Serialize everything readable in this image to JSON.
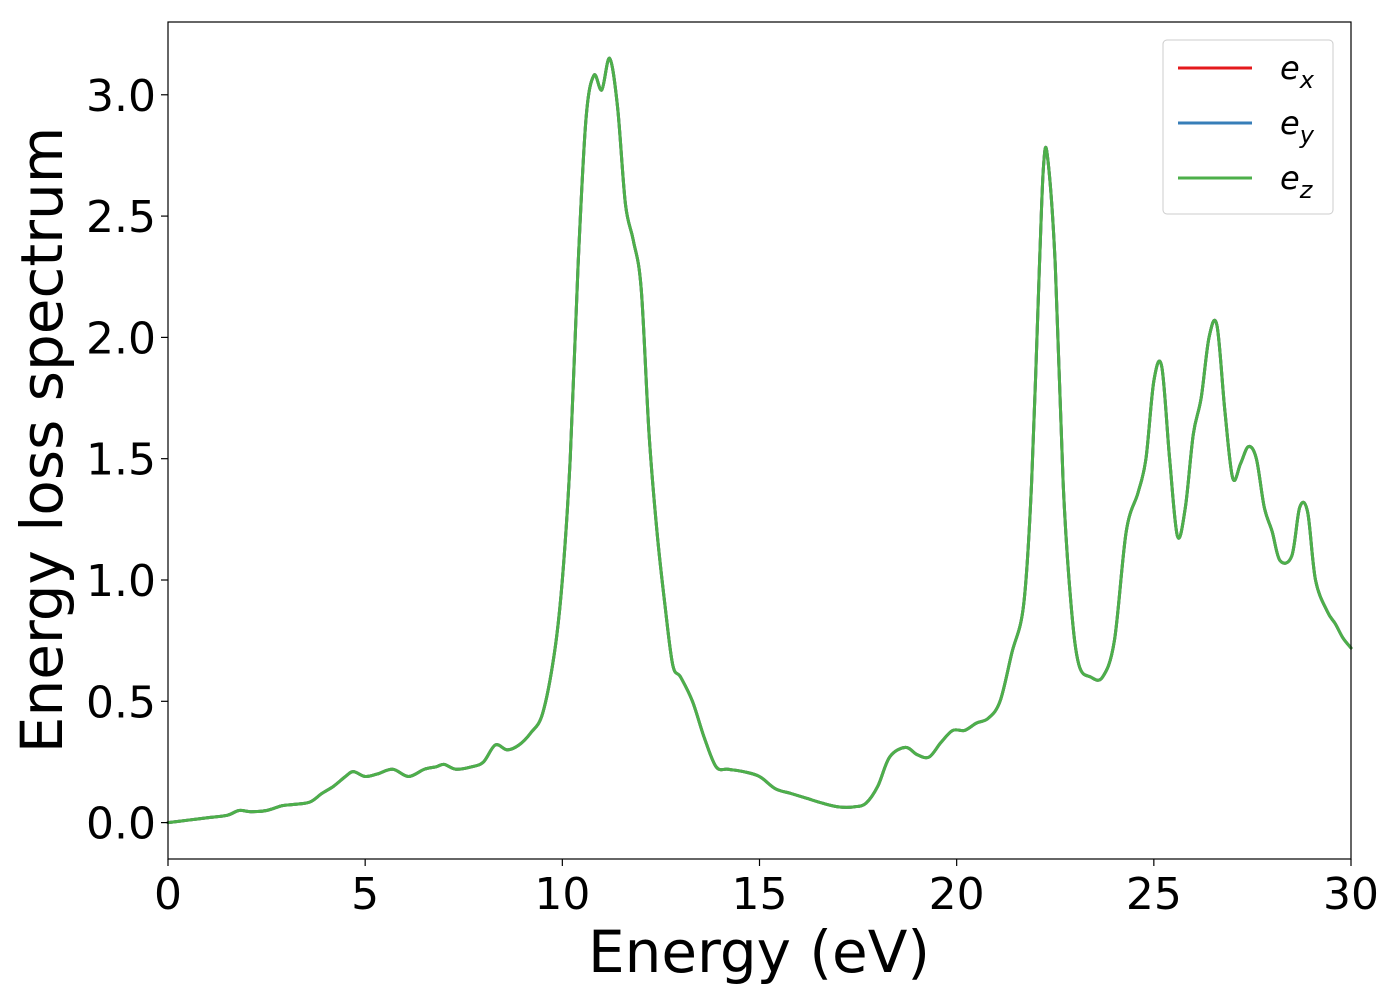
{
  "chart_data": {
    "type": "line",
    "title": "",
    "xlabel": "Energy (eV)",
    "ylabel": "Energy loss spectrum",
    "xlim": [
      0,
      30
    ],
    "ylim": [
      -0.15,
      3.3
    ],
    "xticks": [
      0,
      5,
      10,
      15,
      20,
      25,
      30
    ],
    "xtick_labels": [
      "0",
      "5",
      "10",
      "15",
      "20",
      "25",
      "30"
    ],
    "yticks": [
      0.0,
      0.5,
      1.0,
      1.5,
      2.0,
      2.5,
      3.0
    ],
    "ytick_labels": [
      "0.0",
      "0.5",
      "1.0",
      "1.5",
      "2.0",
      "2.5",
      "3.0"
    ],
    "grid": false,
    "legend_position": "top-right",
    "legend": [
      {
        "base": "e",
        "sub": "x"
      },
      {
        "base": "e",
        "sub": "y"
      },
      {
        "base": "e",
        "sub": "z"
      }
    ],
    "x": [
      0,
      0.5,
      1.0,
      1.5,
      1.8,
      2.1,
      2.5,
      2.9,
      3.2,
      3.6,
      3.9,
      4.2,
      4.5,
      4.7,
      5.0,
      5.3,
      5.7,
      6.1,
      6.5,
      6.8,
      7.0,
      7.3,
      7.7,
      8.0,
      8.3,
      8.6,
      8.9,
      9.2,
      9.5,
      9.8,
      10.0,
      10.2,
      10.4,
      10.6,
      10.8,
      11.0,
      11.2,
      11.4,
      11.6,
      11.8,
      12.0,
      12.2,
      12.4,
      12.6,
      12.8,
      13.0,
      13.3,
      13.6,
      13.9,
      14.2,
      14.6,
      15.0,
      15.4,
      15.8,
      16.2,
      16.6,
      17.0,
      17.4,
      17.7,
      18.0,
      18.3,
      18.7,
      19.0,
      19.3,
      19.6,
      19.9,
      20.2,
      20.5,
      20.8,
      21.1,
      21.4,
      21.7,
      21.9,
      22.1,
      22.2,
      22.3,
      22.5,
      22.7,
      22.9,
      23.1,
      23.4,
      23.7,
      24.0,
      24.3,
      24.6,
      24.8,
      25.0,
      25.2,
      25.4,
      25.6,
      25.8,
      26.0,
      26.2,
      26.4,
      26.6,
      26.8,
      27.0,
      27.2,
      27.4,
      27.6,
      27.8,
      28.0,
      28.2,
      28.5,
      28.7,
      28.9,
      29.1,
      29.4,
      29.6,
      29.8,
      30.0
    ],
    "series": [
      {
        "name": "e_x",
        "color": "#e41a1c",
        "values": [
          0.0,
          0.01,
          0.02,
          0.03,
          0.05,
          0.045,
          0.05,
          0.07,
          0.075,
          0.085,
          0.12,
          0.15,
          0.19,
          0.21,
          0.19,
          0.2,
          0.22,
          0.19,
          0.22,
          0.23,
          0.24,
          0.22,
          0.23,
          0.25,
          0.32,
          0.3,
          0.32,
          0.37,
          0.45,
          0.7,
          1.0,
          1.5,
          2.3,
          2.9,
          3.08,
          3.02,
          3.15,
          2.95,
          2.55,
          2.4,
          2.2,
          1.6,
          1.2,
          0.9,
          0.65,
          0.6,
          0.5,
          0.35,
          0.23,
          0.22,
          0.21,
          0.19,
          0.14,
          0.12,
          0.1,
          0.08,
          0.065,
          0.065,
          0.08,
          0.15,
          0.27,
          0.31,
          0.28,
          0.27,
          0.33,
          0.38,
          0.38,
          0.41,
          0.43,
          0.5,
          0.7,
          0.9,
          1.4,
          2.3,
          2.7,
          2.75,
          2.3,
          1.4,
          0.9,
          0.65,
          0.6,
          0.6,
          0.75,
          1.2,
          1.36,
          1.5,
          1.82,
          1.88,
          1.5,
          1.18,
          1.3,
          1.6,
          1.75,
          2.0,
          2.05,
          1.7,
          1.42,
          1.48,
          1.55,
          1.5,
          1.3,
          1.2,
          1.08,
          1.1,
          1.3,
          1.28,
          1.0,
          0.87,
          0.82,
          0.76,
          0.72
        ]
      },
      {
        "name": "e_y",
        "color": "#377eb8",
        "values": [
          0.0,
          0.01,
          0.02,
          0.03,
          0.05,
          0.045,
          0.05,
          0.07,
          0.075,
          0.085,
          0.12,
          0.15,
          0.19,
          0.21,
          0.19,
          0.2,
          0.22,
          0.19,
          0.22,
          0.23,
          0.24,
          0.22,
          0.23,
          0.25,
          0.32,
          0.3,
          0.32,
          0.37,
          0.45,
          0.7,
          1.0,
          1.5,
          2.3,
          2.9,
          3.08,
          3.02,
          3.15,
          2.95,
          2.55,
          2.4,
          2.2,
          1.6,
          1.2,
          0.9,
          0.65,
          0.6,
          0.5,
          0.35,
          0.23,
          0.22,
          0.21,
          0.19,
          0.14,
          0.12,
          0.1,
          0.08,
          0.065,
          0.065,
          0.08,
          0.15,
          0.27,
          0.31,
          0.28,
          0.27,
          0.33,
          0.38,
          0.38,
          0.41,
          0.43,
          0.5,
          0.7,
          0.9,
          1.4,
          2.3,
          2.7,
          2.75,
          2.3,
          1.4,
          0.9,
          0.65,
          0.6,
          0.6,
          0.75,
          1.2,
          1.36,
          1.5,
          1.82,
          1.88,
          1.5,
          1.18,
          1.3,
          1.6,
          1.75,
          2.0,
          2.05,
          1.7,
          1.42,
          1.48,
          1.55,
          1.5,
          1.3,
          1.2,
          1.08,
          1.1,
          1.3,
          1.28,
          1.0,
          0.87,
          0.82,
          0.76,
          0.72
        ]
      },
      {
        "name": "e_z",
        "color": "#4daf4a",
        "values": [
          0.0,
          0.01,
          0.02,
          0.03,
          0.05,
          0.045,
          0.05,
          0.07,
          0.075,
          0.085,
          0.12,
          0.15,
          0.19,
          0.21,
          0.19,
          0.2,
          0.22,
          0.19,
          0.22,
          0.23,
          0.24,
          0.22,
          0.23,
          0.25,
          0.32,
          0.3,
          0.32,
          0.37,
          0.45,
          0.7,
          1.0,
          1.5,
          2.3,
          2.9,
          3.08,
          3.02,
          3.15,
          2.95,
          2.55,
          2.4,
          2.2,
          1.6,
          1.2,
          0.9,
          0.65,
          0.6,
          0.5,
          0.35,
          0.23,
          0.22,
          0.21,
          0.19,
          0.14,
          0.12,
          0.1,
          0.08,
          0.065,
          0.065,
          0.08,
          0.15,
          0.27,
          0.31,
          0.28,
          0.27,
          0.33,
          0.38,
          0.38,
          0.41,
          0.43,
          0.5,
          0.7,
          0.9,
          1.4,
          2.3,
          2.7,
          2.75,
          2.3,
          1.4,
          0.9,
          0.65,
          0.6,
          0.6,
          0.75,
          1.2,
          1.36,
          1.5,
          1.82,
          1.88,
          1.5,
          1.18,
          1.3,
          1.6,
          1.75,
          2.0,
          2.05,
          1.7,
          1.42,
          1.48,
          1.55,
          1.5,
          1.3,
          1.2,
          1.08,
          1.1,
          1.3,
          1.28,
          1.0,
          0.87,
          0.82,
          0.76,
          0.72
        ]
      }
    ]
  }
}
